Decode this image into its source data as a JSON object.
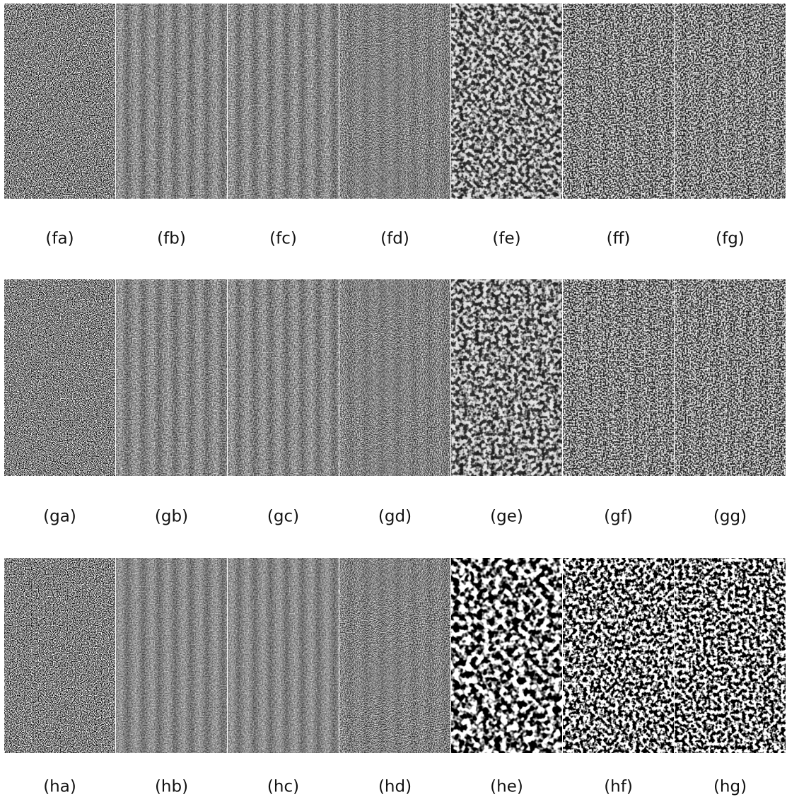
{
  "rows": [
    {
      "labels": [
        "(fa)",
        "(fb)",
        "(fc)",
        "(fd)",
        "(fe)",
        "(ff)",
        "(fg)"
      ]
    },
    {
      "labels": [
        "(ga)",
        "(gb)",
        "(gc)",
        "(gd)",
        "(ge)",
        "(gf)",
        "(gg)"
      ]
    },
    {
      "labels": [
        "(ha)",
        "(hb)",
        "(hc)",
        "(hd)",
        "(he)",
        "(hf)",
        "(hg)"
      ]
    }
  ]
}
